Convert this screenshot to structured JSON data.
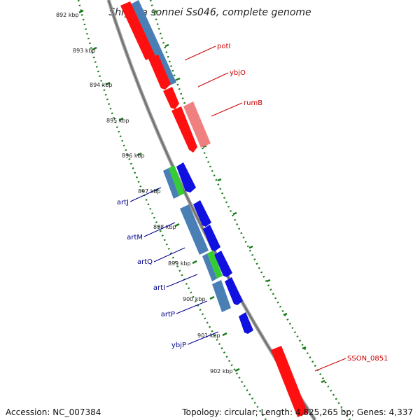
{
  "title": "Shigella sonnei Ss046, complete genome",
  "footer": {
    "accession": "Accession: NC_007384",
    "summary": "Topology: circular; Length: 4,825,265 bp; Genes: 4,337"
  },
  "ticks": [
    {
      "label": "892 kbp"
    },
    {
      "label": "893 kbp"
    },
    {
      "label": "894 kbp"
    },
    {
      "label": "895 kbp"
    },
    {
      "label": "896 kbp"
    },
    {
      "label": "897 kbp"
    },
    {
      "label": "898 kbp"
    },
    {
      "label": "899 kbp"
    },
    {
      "label": "900 kbp"
    },
    {
      "label": "901 kbp"
    },
    {
      "label": "902 kbp"
    }
  ],
  "colors": {
    "cds_forward": "#ff1010",
    "cds_reverse": "#1010e0",
    "gene_blue": "#4a7fb5",
    "gene_green": "#33cc33",
    "gene_pink": "#f08080",
    "backbone": "#888888",
    "tick_green": "#1a7a1a"
  },
  "labels": [
    {
      "text": "potI",
      "color": "red"
    },
    {
      "text": "ybjO",
      "color": "red"
    },
    {
      "text": "rumB",
      "color": "red"
    },
    {
      "text": "SSON_0851",
      "color": "red"
    },
    {
      "text": "artJ",
      "color": "blue"
    },
    {
      "text": "artM",
      "color": "blue"
    },
    {
      "text": "artQ",
      "color": "blue"
    },
    {
      "text": "artI",
      "color": "blue"
    },
    {
      "text": "artP",
      "color": "blue"
    },
    {
      "text": "ybjP",
      "color": "blue"
    }
  ]
}
